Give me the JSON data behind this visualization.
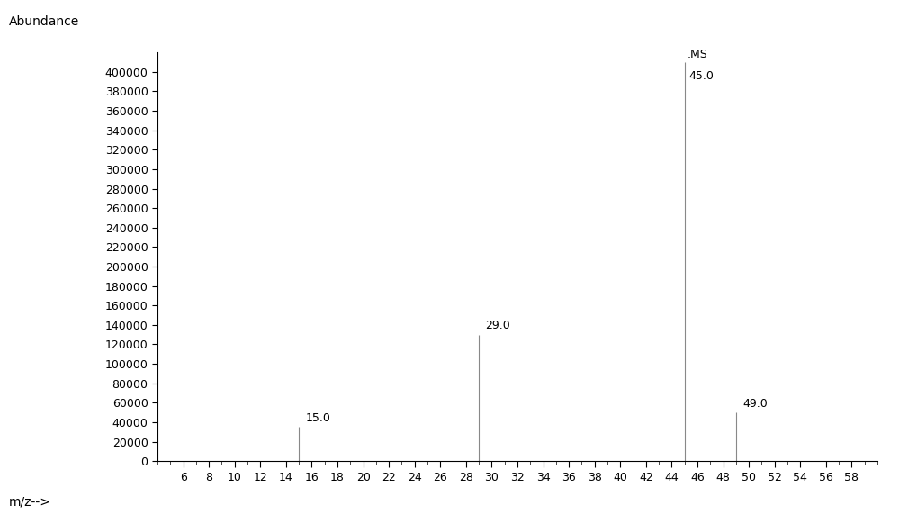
{
  "peaks": [
    {
      "mz": 15.0,
      "abundance": 35000,
      "label": "15.0"
    },
    {
      "mz": 29.0,
      "abundance": 130000,
      "label": "29.0"
    },
    {
      "mz": 45.0,
      "abundance": 410000,
      "label": "45.0"
    },
    {
      "mz": 49.0,
      "abundance": 50000,
      "label": "49.0"
    }
  ],
  "ms_annotation": ".MS",
  "ms_annotation_mz": 45.0,
  "ms_annotation_abundance": 412000,
  "xlabel": "m/z-->",
  "ylabel": "Abundance",
  "xlim": [
    4,
    60
  ],
  "ylim": [
    0,
    420000
  ],
  "xticks": [
    6,
    8,
    10,
    12,
    14,
    16,
    18,
    20,
    22,
    24,
    26,
    28,
    30,
    32,
    34,
    36,
    38,
    40,
    42,
    44,
    46,
    48,
    50,
    52,
    54,
    56,
    58
  ],
  "ytick_step": 20000,
  "ytick_max": 400000,
  "line_color": "#888888",
  "background_color": "#ffffff",
  "label_fontsize": 9,
  "axis_label_fontsize": 10,
  "tick_fontsize": 9
}
